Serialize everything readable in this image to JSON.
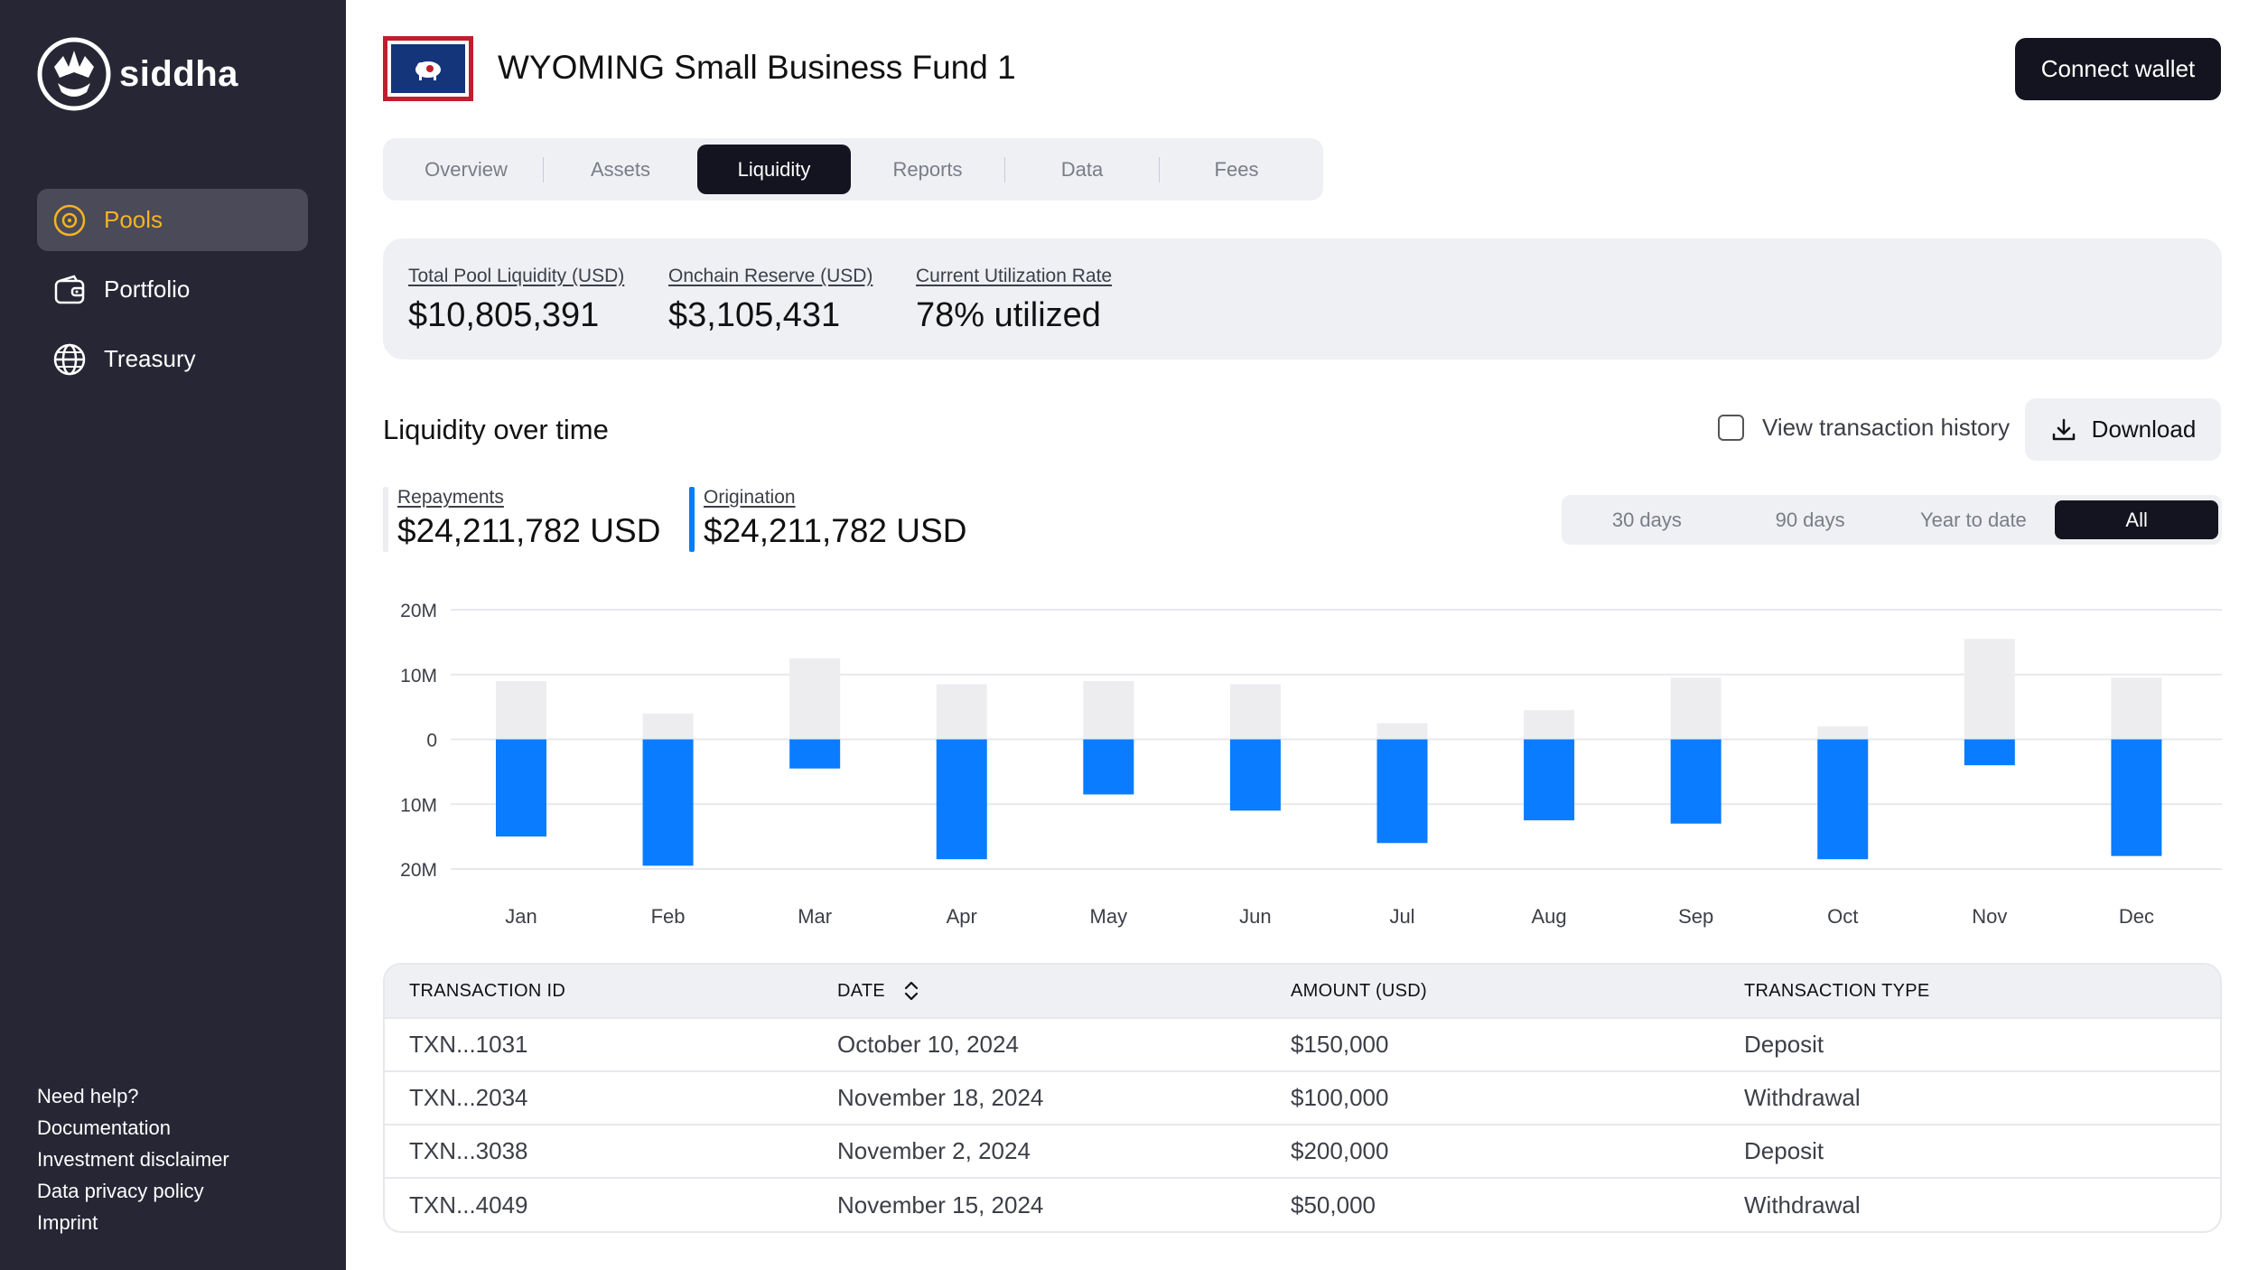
{
  "brand": {
    "name": "siddha"
  },
  "sidebar": {
    "items": [
      {
        "label": "Pools",
        "icon": "pool-icon",
        "active": true
      },
      {
        "label": "Portfolio",
        "icon": "wallet-icon",
        "active": false
      },
      {
        "label": "Treasury",
        "icon": "globe-icon",
        "active": false
      }
    ],
    "footer_links": [
      "Need help?",
      "Documentation",
      "Investment disclaimer",
      "Data privacy policy",
      "Imprint"
    ]
  },
  "header": {
    "title": "WYOMING Small Business Fund 1",
    "flag_icon": "wyoming-flag-icon",
    "connect_label": "Connect wallet"
  },
  "tabs": [
    "Overview",
    "Assets",
    "Liquidity",
    "Reports",
    "Data",
    "Fees"
  ],
  "active_tab": "Liquidity",
  "stats": [
    {
      "label": "Total Pool Liquidity (USD)",
      "value": "$10,805,391"
    },
    {
      "label": "Onchain Reserve (USD)",
      "value": "$3,105,431"
    },
    {
      "label": "Current Utilization Rate",
      "value": "78% utilized"
    }
  ],
  "liquidity": {
    "title": "Liquidity over time",
    "view_history_label": "View transaction history",
    "view_history_checked": false,
    "download_label": "Download",
    "repayments": {
      "label": "Repayments",
      "value": "$24,211,782 USD"
    },
    "origination": {
      "label": "Origination",
      "value": "$24,211,782 USD"
    },
    "ranges": [
      "30 days",
      "90 days",
      "Year to date",
      "All"
    ],
    "active_range": "All"
  },
  "colors": {
    "repayments": "#ededf0",
    "origination": "#0a7cff",
    "sidebar_bg": "#262635",
    "active_accent": "#f5b323",
    "dark_button": "#141420"
  },
  "chart_data": {
    "type": "bar",
    "categories": [
      "Jan",
      "Feb",
      "Mar",
      "Apr",
      "May",
      "Jun",
      "Jul",
      "Aug",
      "Sep",
      "Oct",
      "Nov",
      "Dec"
    ],
    "series": [
      {
        "name": "Repayments",
        "values": [
          9,
          4,
          12.5,
          8.5,
          9,
          8.5,
          2.5,
          4.5,
          9.5,
          2,
          15.5,
          9.5
        ]
      },
      {
        "name": "Origination",
        "values": [
          -15,
          -19.5,
          -4.5,
          -18.5,
          -8.5,
          -11,
          -16,
          -12.5,
          -13,
          -18.5,
          -4,
          -18
        ]
      }
    ],
    "y_ticks": [
      "20M",
      "10M",
      "0",
      "10M",
      "20M"
    ],
    "ylim": [
      -20,
      20
    ],
    "grid": true
  },
  "transactions": {
    "columns": [
      "TRANSACTION ID",
      "DATE",
      "AMOUNT (USD)",
      "TRANSACTION TYPE"
    ],
    "rows": [
      [
        "TXN...1031",
        "October 10, 2024",
        "$150,000",
        "Deposit"
      ],
      [
        "TXN...2034",
        "November 18, 2024",
        "$100,000",
        "Withdrawal"
      ],
      [
        "TXN...3038",
        "November 2, 2024",
        "$200,000",
        "Deposit"
      ],
      [
        "TXN...4049",
        "November 15, 2024",
        "$50,000",
        "Withdrawal"
      ]
    ]
  }
}
